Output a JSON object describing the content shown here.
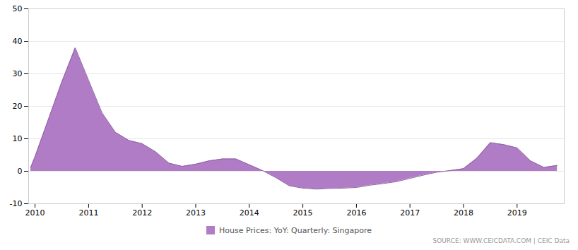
{
  "chart_data": {
    "type": "area",
    "x": [
      2009.92,
      2010.0,
      2010.25,
      2010.5,
      2010.75,
      2011.0,
      2011.25,
      2011.5,
      2011.75,
      2012.0,
      2012.25,
      2012.5,
      2012.75,
      2013.0,
      2013.25,
      2013.5,
      2013.75,
      2014.0,
      2014.25,
      2014.5,
      2014.75,
      2015.0,
      2015.25,
      2015.5,
      2015.75,
      2016.0,
      2016.25,
      2016.5,
      2016.75,
      2017.0,
      2017.25,
      2017.5,
      2017.75,
      2018.0,
      2018.25,
      2018.5,
      2018.75,
      2019.0,
      2019.25,
      2019.5,
      2019.75
    ],
    "series": [
      {
        "name": "House Prices: YoY: Quarterly: Singapore",
        "color": "#b07cc6",
        "values": [
          1.2,
          4.5,
          16.0,
          27.5,
          38.0,
          28.0,
          18.0,
          12.0,
          9.5,
          8.5,
          6.0,
          2.5,
          1.5,
          2.2,
          3.2,
          3.8,
          3.8,
          2.0,
          0.2,
          -2.0,
          -4.5,
          -5.2,
          -5.5,
          -5.3,
          -5.2,
          -5.0,
          -4.3,
          -3.8,
          -3.2,
          -2.2,
          -1.2,
          -0.3,
          0.2,
          0.8,
          4.0,
          8.8,
          8.2,
          7.2,
          3.2,
          1.2,
          1.8
        ]
      }
    ],
    "xlim": [
      2009.88,
      2019.88
    ],
    "xticks": [
      2010,
      2011,
      2012,
      2013,
      2014,
      2015,
      2016,
      2017,
      2018,
      2019
    ],
    "ylim": [
      -10,
      50
    ],
    "yticks": [
      -10,
      0,
      10,
      20,
      30,
      40,
      50
    ],
    "grid": true,
    "annotations": [
      "SOURCE: WWW.CEICDATA.COM | CEIC Data"
    ]
  }
}
